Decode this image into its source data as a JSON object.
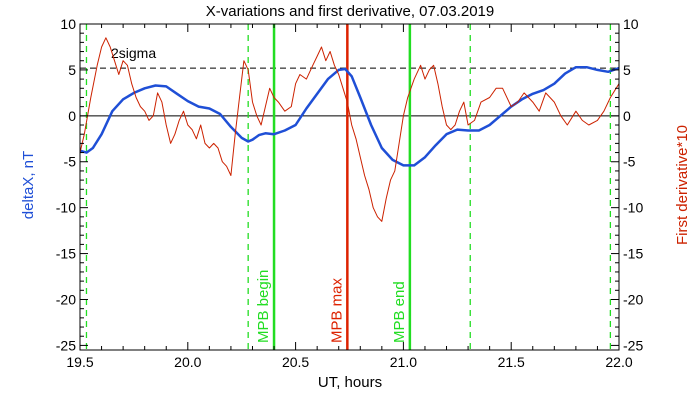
{
  "chart_data": {
    "type": "line",
    "title": "X-variations and first derivative, 07.03.2019",
    "xlabel": "UT, hours",
    "ylabel_left": "deltaX, nT",
    "ylabel_right": "First derivative*10",
    "xlim": [
      19.5,
      22.0
    ],
    "ylim_left": [
      -25.5,
      10
    ],
    "ylim_right": [
      -25.5,
      10
    ],
    "x_ticks": [
      19.5,
      20.0,
      20.5,
      21.0,
      21.5,
      22.0
    ],
    "x_tick_labels": [
      "19.5",
      "20.0",
      "20.5",
      "21.0",
      "21.5",
      "22.0"
    ],
    "y_ticks": [
      10,
      5,
      0,
      -5,
      -10,
      -15,
      -20,
      -25
    ],
    "y_tick_labels": [
      "10",
      "5",
      "0",
      "-5",
      "-10",
      "-15",
      "-20",
      "-25"
    ],
    "sigma_level": 5.2,
    "sigma_label": "2sigma",
    "zero_line": 0,
    "colors": {
      "deltaX": "#1f4fd6",
      "derivative": "#cc2200",
      "green": "#22dd22",
      "red_marker": "#dd2200",
      "axes": "#000000"
    },
    "series": [
      {
        "key": "deltaX",
        "x": [
          19.5,
          19.53,
          19.56,
          19.6,
          19.65,
          19.7,
          19.75,
          19.8,
          19.85,
          19.9,
          19.95,
          20.0,
          20.05,
          20.1,
          20.15,
          20.2,
          20.25,
          20.28,
          20.3,
          20.33,
          20.36,
          20.4,
          20.45,
          20.5,
          20.55,
          20.6,
          20.65,
          20.7,
          20.73,
          20.76,
          20.8,
          20.85,
          20.9,
          20.95,
          21.0,
          21.05,
          21.1,
          21.15,
          21.2,
          21.25,
          21.3,
          21.35,
          21.4,
          21.45,
          21.5,
          21.55,
          21.6,
          21.65,
          21.7,
          21.75,
          21.8,
          21.85,
          21.9,
          21.95,
          22.0
        ],
        "y": [
          -3.8,
          -4.0,
          -3.5,
          -2.0,
          0.5,
          1.8,
          2.5,
          3.0,
          3.3,
          3.2,
          2.4,
          1.6,
          1.0,
          0.8,
          0.2,
          -1.2,
          -2.4,
          -2.8,
          -2.6,
          -2.1,
          -1.9,
          -2.0,
          -1.6,
          -1.0,
          0.8,
          2.4,
          4.0,
          5.0,
          5.1,
          4.3,
          2.0,
          -1.0,
          -3.5,
          -4.8,
          -5.4,
          -5.4,
          -4.5,
          -3.2,
          -2.0,
          -1.5,
          -1.6,
          -1.6,
          -1.0,
          0.0,
          1.0,
          1.8,
          2.4,
          2.8,
          3.5,
          4.6,
          5.3,
          5.3,
          5.0,
          4.8,
          5.2
        ]
      },
      {
        "key": "derivative",
        "x": [
          19.5,
          19.52,
          19.55,
          19.58,
          19.6,
          19.62,
          19.64,
          19.66,
          19.68,
          19.7,
          19.72,
          19.74,
          19.76,
          19.78,
          19.8,
          19.82,
          19.84,
          19.86,
          19.88,
          19.9,
          19.92,
          19.94,
          19.96,
          19.98,
          20.0,
          20.02,
          20.04,
          20.06,
          20.08,
          20.1,
          20.12,
          20.14,
          20.16,
          20.18,
          20.2,
          20.22,
          20.24,
          20.26,
          20.28,
          20.3,
          20.32,
          20.34,
          20.36,
          20.38,
          20.4,
          20.42,
          20.45,
          20.48,
          20.5,
          20.52,
          20.55,
          20.58,
          20.6,
          20.62,
          20.64,
          20.66,
          20.68,
          20.7,
          20.72,
          20.74,
          20.76,
          20.78,
          20.8,
          20.82,
          20.84,
          20.86,
          20.88,
          20.9,
          20.92,
          20.94,
          20.96,
          20.98,
          21.0,
          21.02,
          21.05,
          21.08,
          21.1,
          21.12,
          21.14,
          21.16,
          21.18,
          21.2,
          21.22,
          21.24,
          21.26,
          21.28,
          21.3,
          21.33,
          21.36,
          21.4,
          21.43,
          21.46,
          21.5,
          21.53,
          21.56,
          21.6,
          21.63,
          21.66,
          21.7,
          21.73,
          21.76,
          21.8,
          21.83,
          21.86,
          21.9,
          21.93,
          21.96,
          22.0
        ],
        "y": [
          -4.0,
          -2.0,
          2.0,
          5.5,
          7.5,
          8.5,
          7.5,
          6.0,
          4.5,
          6.0,
          5.5,
          3.5,
          2.0,
          1.0,
          0.5,
          -0.5,
          0.0,
          2.5,
          1.5,
          -1.0,
          -3.0,
          -2.0,
          -0.5,
          0.5,
          -1.0,
          -1.5,
          -2.5,
          -1.0,
          -3.0,
          -3.5,
          -3.0,
          -3.5,
          -5.0,
          -5.5,
          -6.5,
          -2.0,
          2.0,
          6.0,
          5.0,
          1.5,
          0.0,
          -1.0,
          1.0,
          3.0,
          2.0,
          1.5,
          0.5,
          1.0,
          3.5,
          4.5,
          4.0,
          5.5,
          6.5,
          7.5,
          6.0,
          7.0,
          5.5,
          4.5,
          3.0,
          1.5,
          -1.0,
          -2.5,
          -4.5,
          -6.5,
          -8.0,
          -10.0,
          -11.0,
          -11.5,
          -9.0,
          -7.0,
          -6.0,
          -3.0,
          0.0,
          2.0,
          4.0,
          5.5,
          4.0,
          5.0,
          5.5,
          3.5,
          1.0,
          -1.0,
          -1.5,
          -1.0,
          0.5,
          1.5,
          -1.0,
          -0.5,
          1.5,
          2.0,
          3.0,
          3.0,
          1.0,
          1.5,
          2.5,
          1.5,
          0.5,
          2.5,
          1.5,
          0.0,
          -1.0,
          0.5,
          -0.5,
          -1.0,
          -0.5,
          0.5,
          2.0,
          3.5
        ]
      }
    ],
    "vlines": [
      {
        "x": 19.53,
        "style": "dashed",
        "color": "green"
      },
      {
        "x": 20.28,
        "style": "dashed",
        "color": "green"
      },
      {
        "x": 20.4,
        "style": "solid",
        "color": "green",
        "label": "MPB begin"
      },
      {
        "x": 20.74,
        "style": "solid",
        "color": "red_marker",
        "label": "MPB max"
      },
      {
        "x": 21.03,
        "style": "solid",
        "color": "green",
        "label": "MPB end"
      },
      {
        "x": 21.31,
        "style": "dashed",
        "color": "green"
      },
      {
        "x": 21.96,
        "style": "dashed",
        "color": "green"
      }
    ]
  }
}
